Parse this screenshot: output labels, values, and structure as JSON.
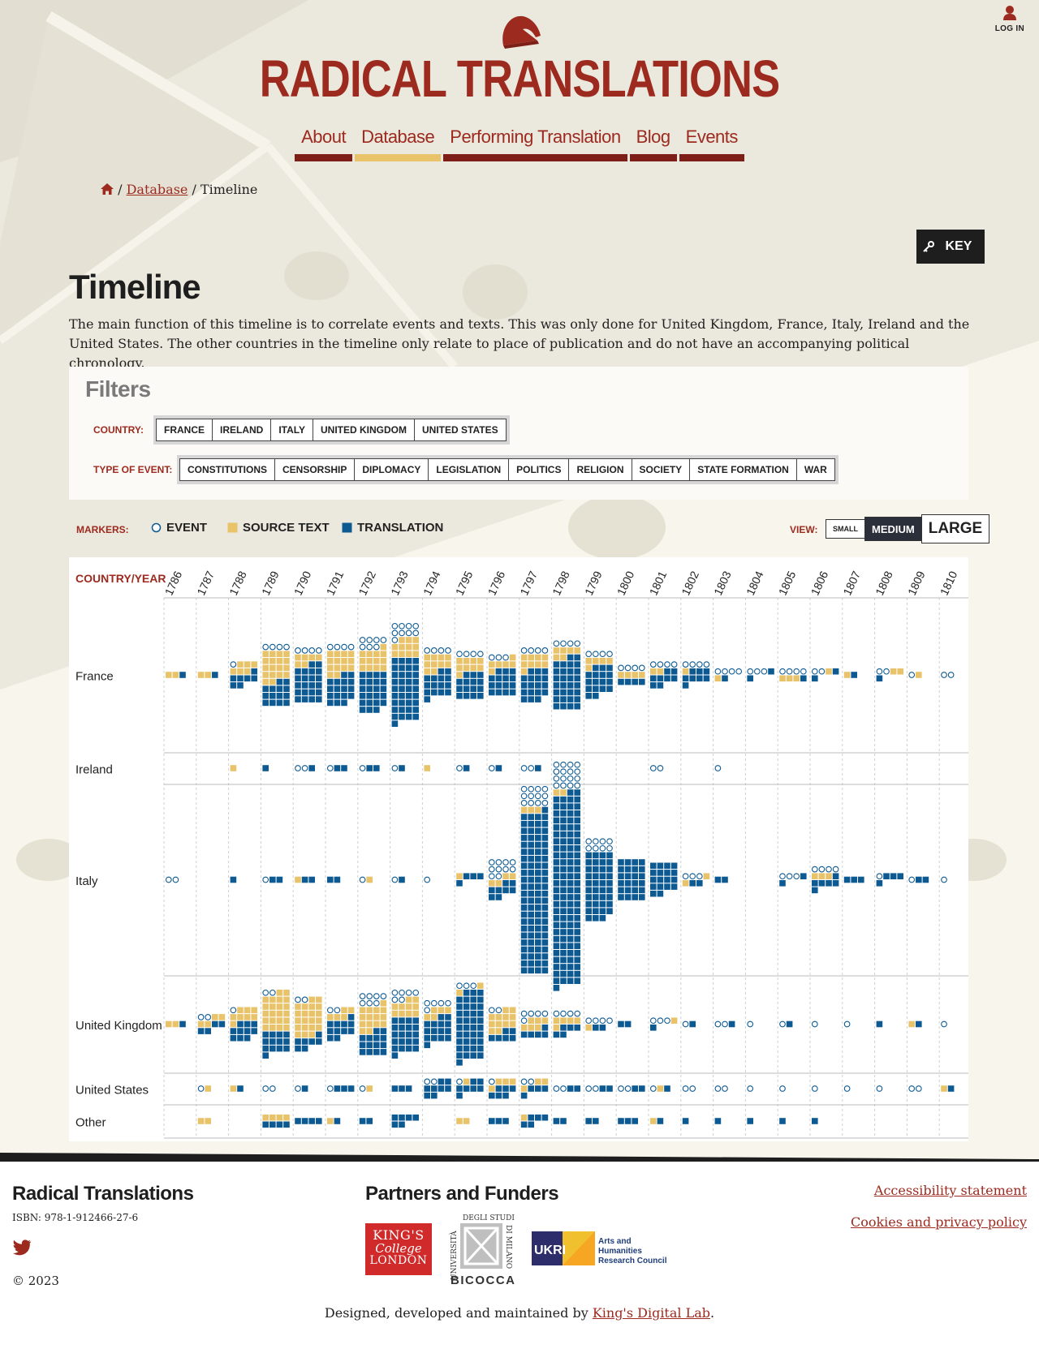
{
  "header": {
    "site_title": "RADICAL TRANSLATIONS",
    "login_label": "LOG IN",
    "nav": [
      {
        "label": "About",
        "active": false
      },
      {
        "label": "Database",
        "active": true
      },
      {
        "label": "Performing Translation",
        "active": false
      },
      {
        "label": "Blog",
        "active": false
      },
      {
        "label": "Events",
        "active": false
      }
    ]
  },
  "breadcrumb": {
    "home_icon": "home-icon",
    "sep": "/",
    "database": "Database",
    "current": "Timeline"
  },
  "key_button": {
    "label": "KEY",
    "icon": "key-icon"
  },
  "main": {
    "title": "Timeline",
    "intro": "The main function of this timeline is to correlate events and texts. This was only done for United Kingdom, France, Italy, Ireland and the United States. The other countries in the timeline only relate to place of publication and do not have an accompanying political chronology."
  },
  "filters": {
    "title": "Filters",
    "country_label": "COUNTRY:",
    "countries": [
      "FRANCE",
      "IRELAND",
      "ITALY",
      "UNITED KINGDOM",
      "UNITED STATES"
    ],
    "event_type_label": "TYPE OF EVENT:",
    "event_types": [
      "CONSTITUTIONS",
      "CENSORSHIP",
      "DIPLOMACY",
      "LEGISLATION",
      "POLITICS",
      "RELIGION",
      "SOCIETY",
      "STATE FORMATION",
      "WAR"
    ]
  },
  "markers": {
    "label": "MARKERS:",
    "event": "EVENT",
    "source_text": "SOURCE TEXT",
    "translation": "TRANSLATION"
  },
  "view": {
    "label": "VIEW:",
    "small": "SMALL",
    "medium": "MEDIUM",
    "large": "LARGE",
    "selected": "MEDIUM"
  },
  "colors": {
    "event": "#0d5a93",
    "source_text": "#e8c36a",
    "translation": "#0d5a93",
    "accent": "#9c2a1f"
  },
  "timeline": {
    "header_label": "COUNTRY/YEAR",
    "years": [
      "1786",
      "1787",
      "1788",
      "1789",
      "1790",
      "1791",
      "1792",
      "1793",
      "1794",
      "1795",
      "1796",
      "1797",
      "1798",
      "1799",
      "1800",
      "1801",
      "1802",
      "1803",
      "1804",
      "1805",
      "1806",
      "1807",
      "1808",
      "1809",
      "1810"
    ],
    "rows": [
      {
        "country": "France",
        "cells": [
          [
            0,
            2,
            1
          ],
          [
            0,
            2,
            1
          ],
          [
            1,
            6,
            7
          ],
          [
            4,
            18,
            14
          ],
          [
            4,
            6,
            22
          ],
          [
            4,
            14,
            17
          ],
          [
            7,
            13,
            23
          ],
          [
            9,
            11,
            37
          ],
          [
            4,
            10,
            15
          ],
          [
            4,
            9,
            15
          ],
          [
            3,
            6,
            15
          ],
          [
            4,
            9,
            18
          ],
          [
            4,
            6,
            30
          ],
          [
            4,
            5,
            17
          ],
          [
            4,
            4,
            4
          ],
          [
            4,
            2,
            8
          ],
          [
            4,
            1,
            8
          ],
          [
            4,
            1,
            1
          ],
          [
            3,
            0,
            2
          ],
          [
            4,
            3,
            1
          ],
          [
            2,
            1,
            2
          ],
          [
            0,
            1,
            1
          ],
          [
            2,
            2,
            1
          ],
          [
            1,
            1,
            0
          ],
          [
            2,
            0,
            0
          ]
        ]
      },
      {
        "country": "Ireland",
        "cells": [
          [
            0,
            0,
            0
          ],
          [
            0,
            0,
            0
          ],
          [
            0,
            1,
            0
          ],
          [
            0,
            0,
            1
          ],
          [
            2,
            0,
            1
          ],
          [
            1,
            0,
            2
          ],
          [
            1,
            0,
            2
          ],
          [
            1,
            0,
            1
          ],
          [
            0,
            1,
            0
          ],
          [
            1,
            0,
            1
          ],
          [
            1,
            0,
            1
          ],
          [
            2,
            0,
            1
          ],
          [
            5,
            0,
            0
          ],
          [
            0,
            0,
            0
          ],
          [
            0,
            0,
            0
          ],
          [
            2,
            0,
            0
          ],
          [
            0,
            0,
            0
          ],
          [
            1,
            0,
            0
          ],
          [
            0,
            0,
            0
          ],
          [
            0,
            0,
            0
          ],
          [
            0,
            0,
            0
          ],
          [
            0,
            0,
            0
          ],
          [
            0,
            0,
            0
          ],
          [
            0,
            0,
            0
          ],
          [
            0,
            0,
            0
          ]
        ]
      },
      {
        "country": "Italy",
        "cells": [
          [
            2,
            0,
            0
          ],
          [
            0,
            0,
            0
          ],
          [
            0,
            0,
            1
          ],
          [
            1,
            0,
            2
          ],
          [
            0,
            1,
            2
          ],
          [
            0,
            0,
            2
          ],
          [
            1,
            1,
            0
          ],
          [
            1,
            0,
            1
          ],
          [
            1,
            0,
            0
          ],
          [
            0,
            1,
            4
          ],
          [
            10,
            4,
            8
          ],
          [
            12,
            3,
            93
          ],
          [
            12,
            2,
            111
          ],
          [
            8,
            0,
            39
          ],
          [
            0,
            0,
            24
          ],
          [
            0,
            0,
            18
          ],
          [
            3,
            2,
            2
          ],
          [
            0,
            0,
            2
          ],
          [
            0,
            0,
            0
          ],
          [
            3,
            0,
            2
          ],
          [
            4,
            3,
            6
          ],
          [
            0,
            0,
            3
          ],
          [
            1,
            0,
            4
          ],
          [
            1,
            0,
            2
          ],
          [
            1,
            0,
            0
          ]
        ]
      },
      {
        "country": "United Kingdom",
        "cells": [
          [
            0,
            2,
            1
          ],
          [
            2,
            4,
            4
          ],
          [
            1,
            8,
            10
          ],
          [
            2,
            22,
            13
          ],
          [
            2,
            21,
            7
          ],
          [
            2,
            5,
            11
          ],
          [
            7,
            15,
            14
          ],
          [
            6,
            10,
            21
          ],
          [
            5,
            5,
            15
          ],
          [
            3,
            2,
            40
          ],
          [
            2,
            12,
            6
          ],
          [
            5,
            6,
            5
          ],
          [
            4,
            5,
            5
          ],
          [
            4,
            1,
            2
          ],
          [
            0,
            0,
            2
          ],
          [
            3,
            1,
            1
          ],
          [
            1,
            0,
            1
          ],
          [
            2,
            0,
            1
          ],
          [
            1,
            0,
            0
          ],
          [
            1,
            0,
            1
          ],
          [
            1,
            0,
            0
          ],
          [
            1,
            0,
            0
          ],
          [
            0,
            0,
            1
          ],
          [
            0,
            1,
            1
          ],
          [
            1,
            0,
            0
          ]
        ]
      },
      {
        "country": "United States",
        "cells": [
          [
            0,
            0,
            0
          ],
          [
            1,
            1,
            0
          ],
          [
            0,
            1,
            1
          ],
          [
            2,
            0,
            0
          ],
          [
            1,
            0,
            1
          ],
          [
            1,
            0,
            3
          ],
          [
            1,
            1,
            0
          ],
          [
            0,
            0,
            3
          ],
          [
            2,
            0,
            8
          ],
          [
            1,
            1,
            7
          ],
          [
            1,
            4,
            6
          ],
          [
            2,
            3,
            4
          ],
          [
            2,
            0,
            2
          ],
          [
            2,
            0,
            2
          ],
          [
            2,
            0,
            2
          ],
          [
            1,
            1,
            1
          ],
          [
            2,
            0,
            0
          ],
          [
            2,
            0,
            0
          ],
          [
            1,
            0,
            0
          ],
          [
            1,
            0,
            0
          ],
          [
            1,
            0,
            0
          ],
          [
            1,
            0,
            0
          ],
          [
            1,
            0,
            0
          ],
          [
            2,
            0,
            0
          ],
          [
            0,
            1,
            1
          ]
        ]
      },
      {
        "country": "Other",
        "cells": [
          [
            0,
            0,
            0
          ],
          [
            0,
            2,
            0
          ],
          [
            0,
            0,
            0
          ],
          [
            0,
            4,
            4
          ],
          [
            0,
            0,
            4
          ],
          [
            0,
            1,
            1
          ],
          [
            0,
            0,
            2
          ],
          [
            0,
            0,
            6
          ],
          [
            0,
            0,
            0
          ],
          [
            0,
            2,
            0
          ],
          [
            0,
            0,
            3
          ],
          [
            0,
            1,
            5
          ],
          [
            0,
            0,
            2
          ],
          [
            0,
            0,
            2
          ],
          [
            0,
            0,
            3
          ],
          [
            0,
            1,
            1
          ],
          [
            0,
            0,
            1
          ],
          [
            0,
            0,
            1
          ],
          [
            0,
            0,
            1
          ],
          [
            0,
            0,
            1
          ],
          [
            0,
            0,
            1
          ],
          [
            0,
            0,
            0
          ],
          [
            0,
            0,
            0
          ],
          [
            0,
            0,
            0
          ],
          [
            0,
            0,
            0
          ]
        ]
      }
    ]
  },
  "footer": {
    "title": "Radical Translations",
    "isbn": "ISBN: 978-1-912466-27-6",
    "twitter_icon": "twitter-icon",
    "copyright": "© 2023",
    "partners_title": "Partners and Funders",
    "kcl": {
      "line1": "KING'S",
      "line2": "College",
      "line3": "LONDON"
    },
    "bicocca": {
      "top": "DEGLI STUDI",
      "left": "UNIVERSITÀ",
      "right": "DI MILANO",
      "name": "BICOCCA"
    },
    "ukri": "UKRI",
    "ahrc": [
      "Arts and",
      "Humanities",
      "Research Council"
    ],
    "links": [
      "Accessibility statement",
      "Cookies and privacy policy"
    ],
    "credit_prefix": "Designed, developed and maintained by ",
    "credit_link": "King's Digital Lab",
    "credit_suffix": "."
  }
}
